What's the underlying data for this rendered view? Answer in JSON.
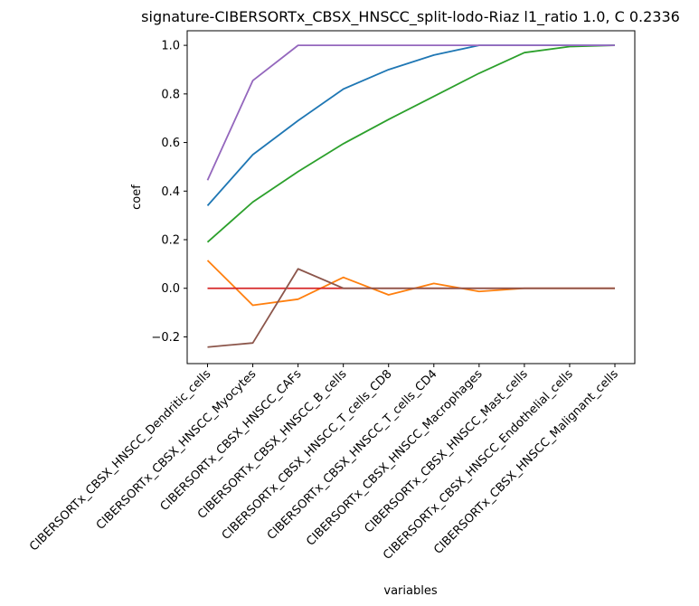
{
  "chart_data": {
    "type": "line",
    "title": "signature-CIBERSORTx_CBSX_HNSCC_split-lodo-Riaz l1_ratio 1.0, C 0.2336",
    "xlabel": "variables",
    "ylabel": "coef",
    "ylim": [
      -0.31,
      1.06
    ],
    "yticks": [
      -0.2,
      0.0,
      0.2,
      0.4,
      0.6,
      0.8,
      1.0
    ],
    "ytick_labels": [
      "−0.2",
      "0.0",
      "0.2",
      "0.4",
      "0.6",
      "0.8",
      "1.0"
    ],
    "grid": false,
    "categories": [
      "CIBERSORTx_CBSX_HNSCC_Dendritic_cells",
      "CIBERSORTx_CBSX_HNSCC_Myocytes",
      "CIBERSORTx_CBSX_HNSCC_CAFs",
      "CIBERSORTx_CBSX_HNSCC_B_cells",
      "CIBERSORTx_CBSX_HNSCC_T_cells_CD8",
      "CIBERSORTx_CBSX_HNSCC_T_cells_CD4",
      "CIBERSORTx_CBSX_HNSCC_Macrophages",
      "CIBERSORTx_CBSX_HNSCC_Mast_cells",
      "CIBERSORTx_CBSX_HNSCC_Endothelial_cells",
      "CIBERSORTx_CBSX_HNSCC_Malignant_cells"
    ],
    "series": [
      {
        "color": "#1f77b4",
        "values": [
          0.34,
          0.55,
          0.69,
          0.82,
          0.9,
          0.96,
          1.0,
          1.0,
          1.0,
          1.0
        ]
      },
      {
        "color": "#ff7f0e",
        "values": [
          0.115,
          -0.07,
          -0.045,
          0.045,
          -0.027,
          0.02,
          -0.013,
          0.0,
          0.0,
          0.0
        ]
      },
      {
        "color": "#2ca02c",
        "values": [
          0.19,
          0.355,
          0.48,
          0.595,
          0.695,
          0.79,
          0.885,
          0.97,
          0.995,
          1.0
        ]
      },
      {
        "color": "#d62728",
        "values": [
          0.0,
          0.0,
          0.0,
          0.0,
          0.0,
          0.0,
          0.0,
          0.0,
          0.0,
          0.0
        ]
      },
      {
        "color": "#9467bd",
        "values": [
          0.445,
          0.855,
          1.0,
          1.0,
          1.0,
          1.0,
          1.0,
          1.0,
          1.0,
          1.0
        ]
      },
      {
        "color": "#8c564b",
        "values": [
          -0.242,
          -0.225,
          0.08,
          0.0,
          0.0,
          0.0,
          0.0,
          0.0,
          0.0,
          0.0
        ]
      }
    ]
  }
}
